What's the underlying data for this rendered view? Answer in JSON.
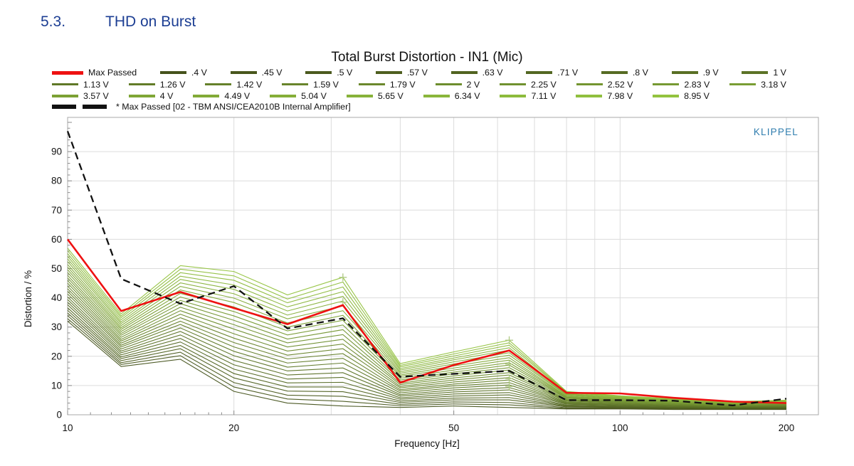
{
  "page": {
    "section_number": "5.3.",
    "section_title": "THD on Burst"
  },
  "chart": {
    "title": "Total Burst Distortion - IN1 (Mic)",
    "watermark": "KLIPPEL",
    "colors": {
      "heading_blue": "#1c3e93",
      "watermark_blue": "#2e7cae",
      "grid": "#dcdcdc",
      "frame": "#a8a8a8",
      "tick": "#8c8c8c"
    }
  },
  "legend": {
    "rows": [
      [
        "Max Passed",
        ".4 V",
        ".45 V",
        ".5 V",
        ".57 V",
        ".63 V",
        ".71 V",
        ".8 V",
        ".9 V",
        "1 V"
      ],
      [
        "1.13 V",
        "1.26 V",
        "1.42 V",
        "1.59 V",
        "1.79 V",
        "2 V",
        "2.25 V",
        "2.52 V",
        "2.83 V",
        "3.18 V"
      ],
      [
        "3.57 V",
        "4 V",
        "4.49 V",
        "5.04 V",
        "5.65 V",
        "6.34 V",
        "7.11 V",
        "7.98 V",
        "8.95 V"
      ]
    ],
    "note_label": "* Max Passed [02 - TBM ANSI/CEA2010B Internal Amplifier]"
  },
  "chart_data": {
    "type": "line",
    "title": "Total Burst Distortion - IN1 (Mic)",
    "xlabel": "Frequency [Hz]",
    "ylabel": "Distortion / %",
    "x_scale": "log",
    "xlim": [
      10,
      230
    ],
    "ylim": [
      0,
      101.7
    ],
    "x_major_ticks": [
      "10",
      "20",
      "50",
      "100",
      "200"
    ],
    "x_gridlines": [
      20,
      30,
      40,
      50,
      60,
      70,
      80,
      90,
      100,
      200
    ],
    "x_minor_ticks": [
      11,
      12,
      13,
      14,
      15,
      16,
      17,
      18,
      19,
      110,
      120,
      130,
      140,
      150,
      160,
      170,
      180,
      190
    ],
    "y_major_ticks": [
      0,
      10,
      20,
      30,
      40,
      50,
      60,
      70,
      80,
      90
    ],
    "y_minor_step": 2,
    "legend_position": "top",
    "grid": true,
    "frequencies": [
      10,
      12.5,
      16,
      20,
      25,
      31.5,
      40,
      50,
      63,
      80,
      100,
      125,
      160,
      200
    ],
    "max_passed": {
      "name": "Max Passed",
      "color": "#ee1111",
      "values": [
        60,
        35.5,
        42,
        36.5,
        31,
        37.5,
        11,
        17,
        22,
        7.5,
        7.3,
        5.8,
        4.5,
        4
      ]
    },
    "reference": {
      "name": "* Max Passed [02 - TBM ANSI/CEA2010B Internal Amplifier]",
      "color": "#111111",
      "dashed": true,
      "values": [
        97,
        46.5,
        38,
        44,
        29.5,
        33,
        13,
        14,
        15,
        5,
        5,
        4.8,
        3.2,
        5.5
      ]
    },
    "series": [
      {
        "name": ".4 V",
        "color": "#45521b",
        "values": [
          32.0,
          16.5,
          19.0,
          8.0,
          4.0,
          3.0,
          2.5,
          3.0,
          2.5,
          2.0,
          2.0,
          1.8,
          1.8,
          1.8
        ]
      },
      {
        "name": ".45 V",
        "color": "#48561c",
        "values": [
          32.9,
          17.2,
          20.2,
          9.5,
          5.4,
          4.6,
          3.1,
          3.7,
          3.4,
          2.2,
          2.2,
          1.9,
          1.9,
          1.9
        ]
      },
      {
        "name": ".5 V",
        "color": "#4b5a1e",
        "values": [
          33.9,
          17.8,
          21.4,
          11.0,
          6.7,
          6.3,
          3.6,
          4.4,
          4.2,
          2.4,
          2.3,
          2.1,
          2.0,
          2.0
        ]
      },
      {
        "name": ".57 V",
        "color": "#4e5f1f",
        "values": [
          34.8,
          18.5,
          22.6,
          12.6,
          8.1,
          7.9,
          4.2,
          5.1,
          5.1,
          2.7,
          2.5,
          2.2,
          2.1,
          2.2
        ]
      },
      {
        "name": ".63 V",
        "color": "#516320",
        "values": [
          35.7,
          19.2,
          23.7,
          14.1,
          9.5,
          9.5,
          4.7,
          5.7,
          5.9,
          2.9,
          2.7,
          2.3,
          2.2,
          2.3
        ]
      },
      {
        "name": ".71 V",
        "color": "#536722",
        "values": [
          36.6,
          19.8,
          24.9,
          15.6,
          10.9,
          11.1,
          5.3,
          6.4,
          6.8,
          3.1,
          2.8,
          2.5,
          2.3,
          2.4
        ]
      },
      {
        "name": ".8 V",
        "color": "#566b23",
        "values": [
          37.6,
          20.5,
          26.1,
          17.1,
          12.2,
          12.8,
          5.8,
          7.1,
          7.6,
          3.3,
          3.0,
          2.6,
          2.4,
          2.5
        ]
      },
      {
        "name": ".9 V",
        "color": "#596f24",
        "values": [
          38.5,
          21.2,
          27.3,
          18.6,
          13.6,
          14.4,
          6.4,
          7.8,
          8.5,
          3.6,
          3.2,
          2.8,
          2.5,
          2.6
        ]
      },
      {
        "name": "1 V",
        "color": "#5c7326",
        "values": [
          39.4,
          21.8,
          28.5,
          20.2,
          15.0,
          16.0,
          6.9,
          8.5,
          9.3,
          3.8,
          3.3,
          2.9,
          2.6,
          2.8
        ]
      },
      {
        "name": "1.13 V",
        "color": "#5f7827",
        "values": [
          40.3,
          22.5,
          29.7,
          21.7,
          16.3,
          17.7,
          7.5,
          9.2,
          10.2,
          4.0,
          3.5,
          3.0,
          2.7,
          2.9
        ]
      },
      {
        "name": "1.26 V",
        "color": "#627c28",
        "values": [
          41.3,
          23.2,
          30.9,
          23.2,
          17.7,
          19.3,
          8.1,
          9.9,
          11.0,
          4.2,
          3.7,
          3.2,
          2.8,
          3.0
        ]
      },
      {
        "name": "1.42 V",
        "color": "#65802a",
        "values": [
          42.2,
          23.8,
          32.0,
          24.7,
          19.1,
          20.9,
          8.6,
          10.5,
          11.9,
          4.4,
          3.8,
          3.3,
          2.9,
          3.1
        ]
      },
      {
        "name": "1.59 V",
        "color": "#68842b",
        "values": [
          43.1,
          24.5,
          33.2,
          26.2,
          20.4,
          22.6,
          9.2,
          11.2,
          12.7,
          4.7,
          4.0,
          3.4,
          3.0,
          3.2
        ]
      },
      {
        "name": "1.79 V",
        "color": "#6b882c",
        "values": [
          44.0,
          25.2,
          34.4,
          27.7,
          21.8,
          24.2,
          9.7,
          11.9,
          13.6,
          4.9,
          4.2,
          3.6,
          3.1,
          3.3
        ]
      },
      {
        "name": "2 V",
        "color": "#6d8d2d",
        "values": [
          45.0,
          25.8,
          35.6,
          29.3,
          23.2,
          25.8,
          10.3,
          12.6,
          14.4,
          5.1,
          4.3,
          3.7,
          3.2,
          3.5
        ]
      },
      {
        "name": "2.25 V",
        "color": "#70912f",
        "values": [
          45.9,
          26.5,
          36.8,
          30.8,
          24.6,
          27.4,
          10.8,
          13.3,
          15.3,
          5.3,
          4.5,
          3.9,
          3.3,
          3.6
        ]
      },
      {
        "name": "2.52 V",
        "color": "#739530",
        "values": [
          46.8,
          27.2,
          38.0,
          32.3,
          25.9,
          29.1,
          11.4,
          14.0,
          16.1,
          5.6,
          4.7,
          4.0,
          3.4,
          3.7
        ]
      },
      {
        "name": "2.83 V",
        "color": "#769932",
        "values": [
          47.7,
          27.8,
          39.1,
          33.8,
          27.3,
          30.7,
          11.9,
          14.6,
          17.0,
          5.8,
          4.8,
          4.1,
          3.5,
          3.8
        ]
      },
      {
        "name": "3.18 V",
        "color": "#799d33",
        "values": [
          48.7,
          28.5,
          40.3,
          35.3,
          28.7,
          32.3,
          12.5,
          15.3,
          17.8,
          6.0,
          5.0,
          4.3,
          3.6,
          3.9
        ]
      },
      {
        "name": "3.57 V",
        "color": "#7ca134",
        "values": [
          49.6,
          29.2,
          41.5,
          36.9,
          30.0,
          34.0,
          13.1,
          16.0,
          18.7,
          6.2,
          5.2,
          4.4,
          3.7,
          4.0
        ]
      },
      {
        "name": "4 V",
        "color": "#7fa636",
        "values": [
          50.5,
          29.8,
          42.7,
          38.4,
          31.4,
          35.6,
          13.6,
          16.7,
          19.5,
          6.4,
          5.3,
          4.5,
          3.8,
          4.2
        ]
      },
      {
        "name": "4.49 V",
        "color": "#82aa37",
        "values": [
          51.4,
          30.5,
          43.9,
          39.9,
          32.8,
          37.2,
          14.2,
          17.4,
          20.4,
          6.7,
          5.5,
          4.7,
          3.9,
          4.3
        ]
      },
      {
        "name": "5.04 V",
        "color": "#85ae38",
        "values": [
          52.4,
          31.2,
          45.1,
          41.4,
          34.1,
          38.9,
          14.7,
          18.1,
          21.2,
          6.9,
          5.7,
          4.8,
          4.0,
          4.4
        ]
      },
      {
        "name": "5.65 V",
        "color": "#87b23a",
        "values": [
          53.3,
          31.8,
          46.3,
          42.9,
          35.5,
          40.5,
          15.3,
          18.8,
          22.1,
          7.1,
          5.8,
          5.0,
          4.1,
          4.5
        ]
      },
      {
        "name": "6.34 V",
        "color": "#8ab63b",
        "values": [
          54.2,
          32.5,
          47.4,
          44.4,
          36.9,
          42.1,
          15.8,
          19.4,
          22.9,
          7.3,
          6.0,
          5.1,
          4.2,
          4.6
        ]
      },
      {
        "name": "7.11 V",
        "color": "#8dbb3c",
        "values": [
          55.1,
          33.2,
          48.6,
          46.0,
          38.3,
          43.7,
          16.4,
          20.1,
          23.8,
          7.6,
          6.2,
          5.2,
          4.3,
          4.7
        ]
      },
      {
        "name": "7.98 V",
        "color": "#90bf3e",
        "values": [
          56.1,
          33.8,
          49.8,
          47.5,
          39.6,
          45.4,
          16.9,
          20.8,
          24.6,
          7.8,
          6.3,
          5.4,
          4.4,
          4.9
        ]
      },
      {
        "name": "8.95 V",
        "color": "#93c33f",
        "values": [
          57.0,
          34.5,
          51.0,
          49.0,
          41.0,
          47.0,
          17.5,
          21.5,
          25.5,
          8.0,
          6.5,
          5.5,
          4.5,
          5.0
        ]
      }
    ],
    "markers": {
      "symbol": "+",
      "color": "#aec983",
      "points": [
        [
          31.5,
          47
        ],
        [
          31.5,
          38.5
        ],
        [
          63,
          25.5
        ],
        [
          63,
          17.3
        ],
        [
          63,
          12.4
        ],
        [
          63,
          9.7
        ]
      ]
    }
  }
}
